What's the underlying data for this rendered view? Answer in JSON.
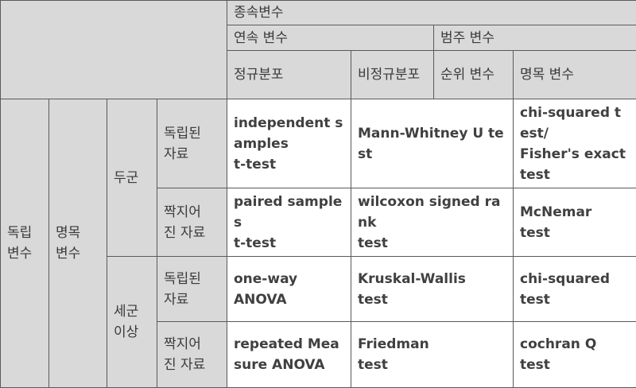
{
  "header": {
    "dependent": "종속변수",
    "continuous": "연속 변수",
    "categorical": "범주 변수",
    "normal": "정규분포",
    "nonnormal": "비정규분포",
    "ordinal": "순위 변수",
    "nominal": "명목 변수"
  },
  "rowheaders": {
    "independent": "독립\n변수",
    "nominal": "명목\n변수",
    "two_groups": "두군",
    "three_plus": "세군\n이상",
    "independent_data": "독립된\n자료",
    "paired_data": "짝지어\n진 자료"
  },
  "rows": [
    {
      "normal": "independent samples\nt-test",
      "nonnormal_ordinal": "Mann-Whitney U test",
      "nominal": "chi-squared test/\nFisher's exact test"
    },
    {
      "normal": "paired samples\nt-test",
      "nonnormal_ordinal": "wilcoxon signed rank\ntest",
      "nominal": "McNemar\ntest"
    },
    {
      "normal": "one-way\nANOVA",
      "nonnormal_ordinal": "Kruskal-Wallis\ntest",
      "nominal": "chi-squared\ntest"
    },
    {
      "normal": "repeated Measure ANOVA",
      "nonnormal_ordinal": "Friedman\ntest",
      "nominal": "cochran Q\ntest"
    }
  ]
}
